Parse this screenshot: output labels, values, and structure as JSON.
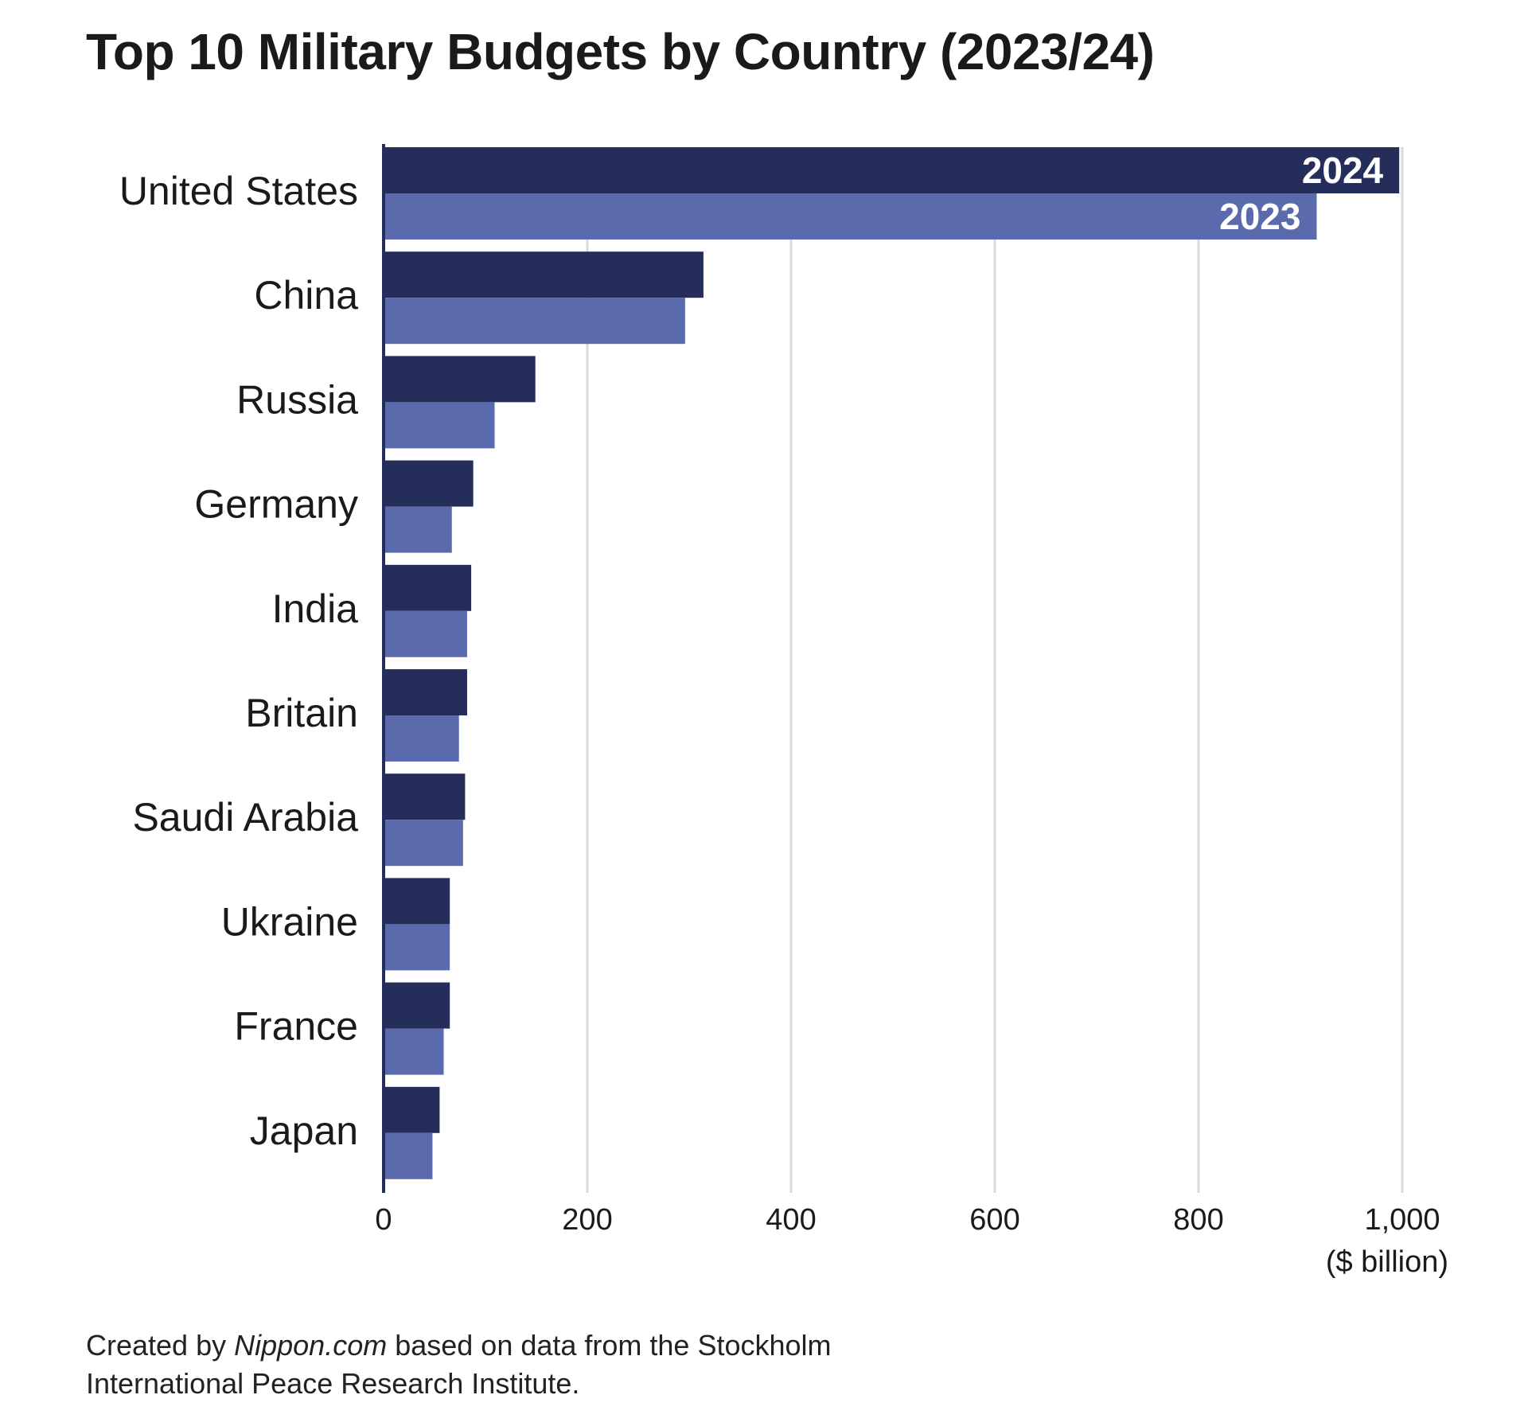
{
  "chart_data": {
    "type": "bar",
    "orientation": "horizontal",
    "title": "Top 10 Military Budgets by Country (2023/24)",
    "categories": [
      "United States",
      "China",
      "Russia",
      "Germany",
      "India",
      "Britain",
      "Saudi Arabia",
      "Ukraine",
      "France",
      "Japan"
    ],
    "series": [
      {
        "name": "2024",
        "color": "#252d5a",
        "values": [
          997,
          314,
          149,
          88,
          86,
          82,
          80,
          65,
          65,
          55
        ]
      },
      {
        "name": "2023",
        "color": "#5a6aac",
        "values": [
          916,
          296,
          109,
          67,
          82,
          74,
          78,
          65,
          59,
          48
        ]
      }
    ],
    "xlim": [
      0,
      1000
    ],
    "xticks": [
      0,
      200,
      400,
      600,
      800,
      1000
    ],
    "xtick_labels": [
      "0",
      "200",
      "400",
      "600",
      "800",
      "1,000"
    ],
    "unit_label": "($ billion)",
    "grid": true,
    "legend": "inline labels on first category bars"
  },
  "source": {
    "prefix": "Created by ",
    "publisher": "Nippon.com",
    "suffix": " based on data from the Stockholm",
    "line2": "International Peace Research Institute."
  }
}
